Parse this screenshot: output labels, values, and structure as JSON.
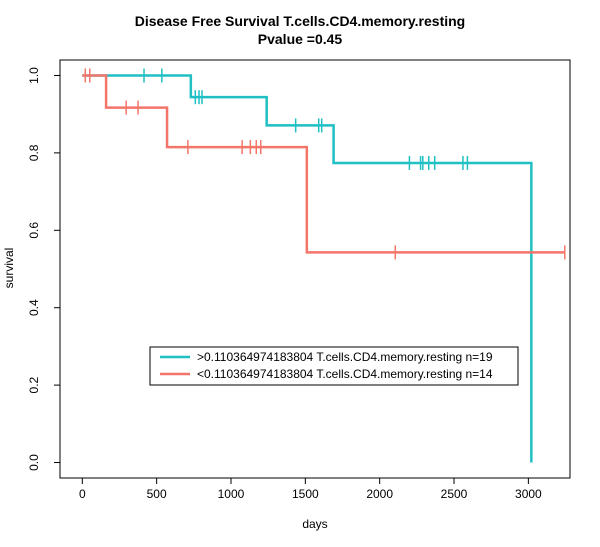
{
  "chart_data": {
    "type": "line",
    "title": "Disease Free Survival T.cells.CD4.memory.resting",
    "subtitle": "Pvalue =0.45",
    "xlabel": "days",
    "ylabel": "survival",
    "xlim": [
      -150,
      3280
    ],
    "ylim": [
      -0.04,
      1.04
    ],
    "xticks": [
      0,
      500,
      1000,
      1500,
      2000,
      2500,
      3000
    ],
    "yticks": [
      0.0,
      0.2,
      0.4,
      0.6,
      0.8,
      1.0
    ],
    "xtick_labels": [
      "0",
      "500",
      "1000",
      "1500",
      "2000",
      "2500",
      "3000"
    ],
    "ytick_labels": [
      "0.0",
      "0.2",
      "0.4",
      "0.6",
      "0.8",
      "1.0"
    ],
    "grid": false,
    "legend_position": "lower-center",
    "series": [
      {
        "name": ">0.110364974183804 T.cells.CD4.memory.resting n=19",
        "color": "#1fbfc4",
        "steps": [
          [
            0,
            1.0
          ],
          [
            730,
            0.944
          ],
          [
            1240,
            0.871
          ],
          [
            1690,
            0.774
          ],
          [
            3020,
            0.0
          ]
        ],
        "end_x": 3020,
        "censor_times": [
          20,
          50,
          415,
          535,
          760,
          785,
          805,
          1435,
          1590,
          1610,
          2200,
          2275,
          2290,
          2330,
          2370,
          2560,
          2590
        ]
      },
      {
        "name": "<0.110364974183804 T.cells.CD4.memory.resting n=14",
        "color": "#f4756a",
        "steps": [
          [
            0,
            1.0
          ],
          [
            160,
            0.917
          ],
          [
            570,
            0.815
          ],
          [
            1510,
            0.543
          ]
        ],
        "end_x": 3245,
        "censor_times": [
          20,
          50,
          295,
          375,
          710,
          1075,
          1130,
          1170,
          1200,
          2105,
          3245
        ]
      }
    ]
  }
}
